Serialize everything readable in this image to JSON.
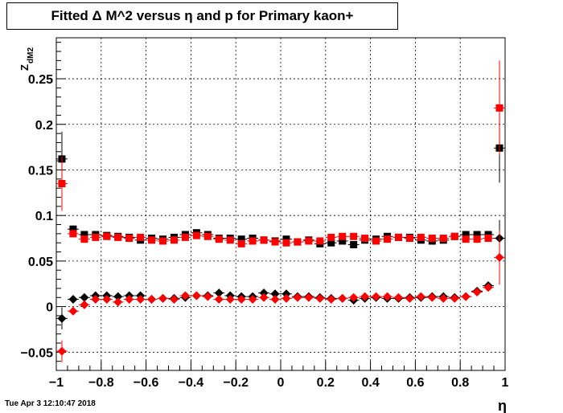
{
  "title": "Fitted Δ M^2 versus η and p for Primary kaon+",
  "footer": "Tue Apr  3 12:10:47 2018",
  "chart_data": {
    "type": "scatter",
    "title": "Fitted Δ M^2 versus η and p for Primary kaon+",
    "xlabel": "η",
    "ylabel_main": "Z",
    "ylabel_sub": "dM2",
    "xlim": [
      -1,
      1
    ],
    "ylim": [
      -0.07,
      0.295
    ],
    "x_ticks": [
      -1,
      -0.8,
      -0.6,
      -0.4,
      -0.2,
      0,
      0.2,
      0.4,
      0.6,
      0.8,
      1
    ],
    "x_tick_labels": [
      "−1",
      "−0.8",
      "−0.6",
      "−0.4",
      "−0.2",
      "0",
      "0.2",
      "0.4",
      "0.6",
      "0.8",
      "1"
    ],
    "y_ticks": [
      -0.05,
      0,
      0.05,
      0.1,
      0.15,
      0.2,
      0.25
    ],
    "y_tick_labels": [
      "−0.05",
      "0",
      "0.05",
      "0.1",
      "0.15",
      "0.2",
      "0.25"
    ],
    "x": [
      -0.975,
      -0.925,
      -0.875,
      -0.825,
      -0.775,
      -0.725,
      -0.675,
      -0.625,
      -0.575,
      -0.525,
      -0.475,
      -0.425,
      -0.375,
      -0.325,
      -0.275,
      -0.225,
      -0.175,
      -0.125,
      -0.075,
      -0.025,
      0.025,
      0.075,
      0.125,
      0.175,
      0.225,
      0.275,
      0.325,
      0.375,
      0.425,
      0.475,
      0.525,
      0.575,
      0.625,
      0.675,
      0.725,
      0.775,
      0.825,
      0.875,
      0.925,
      0.975
    ],
    "series": [
      {
        "marker": "square",
        "color": "#000000",
        "values": [
          0.162,
          0.085,
          0.079,
          0.079,
          0.078,
          0.077,
          0.076,
          0.073,
          0.075,
          0.074,
          0.076,
          0.079,
          0.081,
          0.079,
          0.075,
          0.075,
          0.074,
          0.075,
          0.073,
          0.072,
          0.074,
          0.071,
          0.073,
          0.069,
          0.07,
          0.072,
          0.068,
          0.073,
          0.074,
          0.077,
          0.076,
          0.076,
          0.073,
          0.072,
          0.073,
          0.077,
          0.079,
          0.079,
          0.079,
          0.174
        ],
        "errors": [
          0.03,
          0.004,
          0.003,
          0.003,
          0.003,
          0.003,
          0.003,
          0.003,
          0.003,
          0.003,
          0.003,
          0.003,
          0.003,
          0.003,
          0.003,
          0.003,
          0.003,
          0.003,
          0.003,
          0.003,
          0.003,
          0.003,
          0.003,
          0.003,
          0.003,
          0.003,
          0.003,
          0.003,
          0.003,
          0.003,
          0.003,
          0.003,
          0.003,
          0.003,
          0.003,
          0.003,
          0.003,
          0.003,
          0.004,
          0.038
        ]
      },
      {
        "marker": "square",
        "color": "#ff0000",
        "values": [
          0.135,
          0.08,
          0.074,
          0.076,
          0.077,
          0.076,
          0.075,
          0.076,
          0.073,
          0.072,
          0.073,
          0.076,
          0.078,
          0.077,
          0.074,
          0.073,
          0.069,
          0.072,
          0.073,
          0.071,
          0.07,
          0.071,
          0.072,
          0.072,
          0.076,
          0.077,
          0.077,
          0.075,
          0.072,
          0.074,
          0.076,
          0.075,
          0.076,
          0.075,
          0.075,
          0.077,
          0.074,
          0.074,
          0.075,
          0.218
        ],
        "errors": [
          0.03,
          0.004,
          0.003,
          0.003,
          0.003,
          0.003,
          0.003,
          0.003,
          0.003,
          0.003,
          0.003,
          0.003,
          0.003,
          0.003,
          0.003,
          0.003,
          0.003,
          0.003,
          0.003,
          0.003,
          0.003,
          0.003,
          0.003,
          0.003,
          0.003,
          0.003,
          0.003,
          0.003,
          0.003,
          0.003,
          0.003,
          0.003,
          0.003,
          0.003,
          0.003,
          0.003,
          0.003,
          0.003,
          0.004,
          0.052
        ]
      },
      {
        "marker": "diamond",
        "color": "#000000",
        "values": [
          -0.013,
          0.008,
          0.01,
          0.012,
          0.012,
          0.011,
          0.012,
          0.012,
          0.008,
          0.009,
          0.009,
          0.01,
          0.012,
          0.012,
          0.015,
          0.012,
          0.011,
          0.011,
          0.015,
          0.014,
          0.014,
          0.011,
          0.011,
          0.01,
          0.009,
          0.009,
          0.007,
          0.009,
          0.01,
          0.009,
          0.009,
          0.01,
          0.01,
          0.011,
          0.011,
          0.01,
          0.011,
          0.017,
          0.023,
          0.075
        ],
        "errors": [
          0.012,
          0.003,
          0.002,
          0.002,
          0.002,
          0.002,
          0.002,
          0.002,
          0.002,
          0.002,
          0.002,
          0.002,
          0.002,
          0.002,
          0.002,
          0.002,
          0.002,
          0.002,
          0.002,
          0.002,
          0.002,
          0.002,
          0.002,
          0.002,
          0.002,
          0.002,
          0.002,
          0.002,
          0.002,
          0.002,
          0.002,
          0.002,
          0.002,
          0.002,
          0.002,
          0.002,
          0.002,
          0.003,
          0.004,
          0.02
        ]
      },
      {
        "marker": "diamond",
        "color": "#ff0000",
        "values": [
          -0.049,
          -0.005,
          0.002,
          0.008,
          0.008,
          0.005,
          0.008,
          0.008,
          0.008,
          0.009,
          0.008,
          0.012,
          0.012,
          0.011,
          0.008,
          0.008,
          0.008,
          0.008,
          0.01,
          0.008,
          0.009,
          0.01,
          0.01,
          0.009,
          0.008,
          0.009,
          0.01,
          0.011,
          0.011,
          0.011,
          0.01,
          0.009,
          0.011,
          0.01,
          0.009,
          0.009,
          0.011,
          0.016,
          0.021,
          0.054
        ],
        "errors": [
          0.012,
          0.003,
          0.002,
          0.002,
          0.002,
          0.002,
          0.002,
          0.002,
          0.002,
          0.002,
          0.002,
          0.002,
          0.002,
          0.002,
          0.002,
          0.002,
          0.002,
          0.002,
          0.002,
          0.002,
          0.002,
          0.002,
          0.002,
          0.002,
          0.002,
          0.002,
          0.002,
          0.002,
          0.002,
          0.002,
          0.002,
          0.002,
          0.002,
          0.002,
          0.002,
          0.002,
          0.002,
          0.003,
          0.004,
          0.03
        ]
      }
    ]
  }
}
